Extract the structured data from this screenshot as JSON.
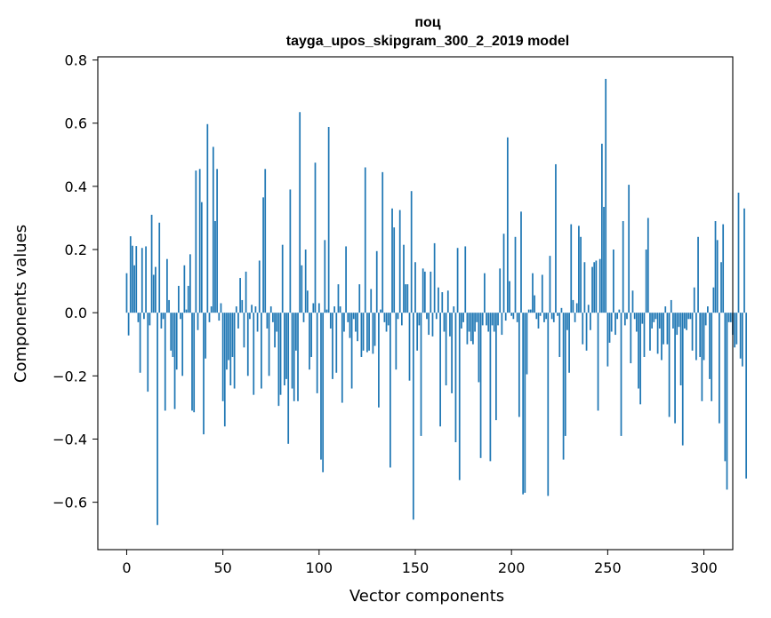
{
  "chart_data": {
    "type": "bar",
    "title": "поц",
    "subtitle": "tayga_upos_skipgram_300_2_2019 model",
    "xlabel": "Vector components",
    "ylabel": "Components values",
    "xlim": [
      -15,
      315
    ],
    "ylim": [
      -0.75,
      0.81
    ],
    "xticks": [
      0,
      50,
      100,
      150,
      200,
      250,
      300
    ],
    "yticks": [
      -0.6,
      -0.4,
      -0.2,
      0.0,
      0.2,
      0.4,
      0.6,
      0.8
    ],
    "xtick_labels": [
      "0",
      "50",
      "100",
      "150",
      "200",
      "250",
      "300"
    ],
    "ytick_labels": [
      "−0.6",
      "−0.4",
      "−0.2",
      "0.0",
      "0.2",
      "0.4",
      "0.6",
      "0.8"
    ],
    "grid": false,
    "bar_color": "#1f77b4",
    "x_start": 0,
    "values": [
      0.125,
      -0.072,
      0.242,
      0.212,
      0.15,
      0.211,
      -0.03,
      -0.19,
      0.205,
      -0.02,
      0.21,
      -0.25,
      -0.04,
      0.31,
      0.12,
      0.145,
      -0.672,
      0.285,
      -0.05,
      -0.02,
      -0.31,
      0.17,
      0.04,
      -0.12,
      -0.14,
      -0.305,
      -0.18,
      0.085,
      -0.02,
      -0.2,
      0.15,
      0.01,
      0.085,
      0.185,
      -0.31,
      -0.315,
      0.45,
      -0.055,
      0.455,
      0.35,
      -0.385,
      -0.145,
      0.597,
      -0.03,
      0.02,
      0.525,
      0.29,
      0.455,
      -0.025,
      0.03,
      -0.28,
      -0.36,
      -0.18,
      -0.15,
      -0.23,
      -0.14,
      -0.24,
      0.02,
      -0.05,
      0.11,
      0.04,
      -0.11,
      0.13,
      -0.2,
      -0.02,
      0.025,
      -0.26,
      0.02,
      -0.06,
      0.165,
      -0.24,
      0.365,
      0.455,
      -0.05,
      -0.2,
      0.02,
      -0.03,
      -0.11,
      -0.06,
      -0.295,
      -0.26,
      0.215,
      -0.23,
      -0.21,
      -0.415,
      0.39,
      -0.24,
      -0.28,
      -0.12,
      -0.28,
      0.635,
      0.15,
      -0.03,
      0.2,
      0.07,
      -0.18,
      -0.14,
      0.03,
      0.475,
      -0.255,
      0.03,
      -0.465,
      -0.505,
      0.23,
      0.01,
      0.588,
      -0.05,
      -0.21,
      0.02,
      -0.19,
      0.09,
      0.02,
      -0.285,
      -0.06,
      0.21,
      -0.03,
      -0.08,
      -0.24,
      -0.02,
      -0.06,
      -0.09,
      0.09,
      -0.14,
      -0.12,
      0.46,
      -0.125,
      -0.12,
      0.075,
      -0.13,
      -0.105,
      0.195,
      -0.3,
      0.01,
      0.445,
      -0.03,
      -0.06,
      -0.04,
      -0.49,
      0.33,
      0.27,
      -0.18,
      -0.02,
      0.325,
      -0.04,
      0.215,
      0.09,
      0.09,
      -0.215,
      0.385,
      -0.655,
      0.16,
      -0.12,
      -0.04,
      -0.39,
      0.14,
      0.13,
      -0.02,
      -0.07,
      0.13,
      -0.075,
      0.22,
      -0.02,
      0.08,
      -0.36,
      0.065,
      -0.06,
      -0.23,
      0.07,
      -0.075,
      -0.255,
      0.02,
      -0.41,
      0.205,
      -0.53,
      -0.05,
      -0.03,
      0.21,
      -0.1,
      -0.06,
      -0.09,
      -0.1,
      -0.06,
      -0.03,
      -0.22,
      -0.46,
      -0.04,
      0.125,
      -0.04,
      -0.06,
      -0.47,
      -0.04,
      -0.06,
      -0.34,
      -0.04,
      0.14,
      -0.07,
      0.25,
      -0.025,
      0.555,
      0.1,
      -0.01,
      -0.02,
      0.24,
      -0.03,
      -0.33,
      0.32,
      -0.575,
      -0.57,
      -0.195,
      0.01,
      0.01,
      0.125,
      0.055,
      -0.02,
      -0.05,
      -0.01,
      0.12,
      -0.03,
      -0.02,
      -0.58,
      0.18,
      -0.02,
      -0.03,
      0.47,
      -0.01,
      -0.14,
      0.015,
      -0.465,
      -0.39,
      -0.055,
      -0.19,
      0.28,
      0.04,
      -0.03,
      0.03,
      0.275,
      0.24,
      -0.1,
      0.16,
      -0.12,
      0.025,
      -0.055,
      0.145,
      0.16,
      0.165,
      -0.31,
      0.17,
      0.535,
      0.335,
      0.74,
      -0.17,
      -0.095,
      -0.06,
      0.2,
      -0.07,
      -0.02,
      0.01,
      -0.39,
      0.29,
      -0.04,
      -0.02,
      0.405,
      -0.16,
      0.07,
      -0.02,
      -0.06,
      -0.24,
      -0.29,
      -0.035,
      -0.14,
      0.2,
      0.3,
      -0.12,
      -0.05,
      -0.03,
      -0.02,
      -0.13,
      -0.05,
      -0.15,
      -0.1,
      0.02,
      -0.1,
      -0.33,
      0.04,
      -0.05,
      -0.35,
      -0.07,
      -0.045,
      -0.23,
      -0.42,
      -0.05,
      -0.055,
      -0.02,
      -0.02,
      -0.12,
      0.08,
      -0.15,
      0.24,
      -0.14,
      -0.28,
      -0.15,
      -0.04,
      0.02,
      -0.21,
      -0.28,
      0.08,
      0.29,
      0.23,
      -0.35,
      0.16,
      0.28,
      -0.47,
      -0.56,
      -0.03,
      -0.03,
      -0.07,
      -0.11,
      -0.1,
      0.38,
      -0.145,
      -0.17,
      0.33,
      -0.525
    ]
  }
}
